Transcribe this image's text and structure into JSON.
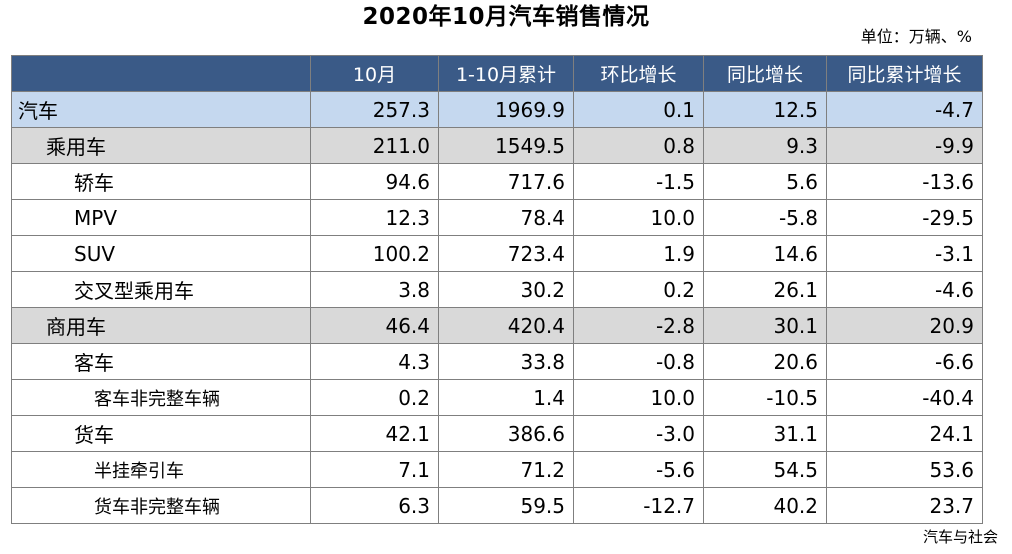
{
  "title": "2020年10月汽车销售情况",
  "unit": "单位：万辆、%",
  "source": "汽车与社会",
  "columns": [
    "",
    "10月",
    "1-10月累计",
    "环比增长",
    "同比增长",
    "同比累计增长"
  ],
  "rows": [
    {
      "name": "汽车",
      "level": 0,
      "style": "top",
      "v": [
        "257.3",
        "1969.9",
        "0.1",
        "12.5",
        "-4.7"
      ]
    },
    {
      "name": "乘用车",
      "level": 1,
      "style": "mid",
      "v": [
        "211.0",
        "1549.5",
        "0.8",
        "9.3",
        "-9.9"
      ]
    },
    {
      "name": "轿车",
      "level": 2,
      "style": "sub",
      "v": [
        "94.6",
        "717.6",
        "-1.5",
        "5.6",
        "-13.6"
      ]
    },
    {
      "name": "MPV",
      "level": 2,
      "style": "sub",
      "v": [
        "12.3",
        "78.4",
        "10.0",
        "-5.8",
        "-29.5"
      ]
    },
    {
      "name": "SUV",
      "level": 2,
      "style": "sub",
      "v": [
        "100.2",
        "723.4",
        "1.9",
        "14.6",
        "-3.1"
      ]
    },
    {
      "name": "交叉型乘用车",
      "level": 2,
      "style": "sub",
      "v": [
        "3.8",
        "30.2",
        "0.2",
        "26.1",
        "-4.6"
      ]
    },
    {
      "name": "商用车",
      "level": 1,
      "style": "mid",
      "v": [
        "46.4",
        "420.4",
        "-2.8",
        "30.1",
        "20.9"
      ]
    },
    {
      "name": "客车",
      "level": 2,
      "style": "sub",
      "v": [
        "4.3",
        "33.8",
        "-0.8",
        "20.6",
        "-6.6"
      ]
    },
    {
      "name": "客车非完整车辆",
      "level": 3,
      "style": "sub",
      "v": [
        "0.2",
        "1.4",
        "10.0",
        "-10.5",
        "-40.4"
      ]
    },
    {
      "name": "货车",
      "level": 2,
      "style": "sub",
      "v": [
        "42.1",
        "386.6",
        "-3.0",
        "31.1",
        "24.1"
      ]
    },
    {
      "name": "半挂牵引车",
      "level": 3,
      "style": "sub",
      "v": [
        "7.1",
        "71.2",
        "-5.6",
        "54.5",
        "53.6"
      ]
    },
    {
      "name": "货车非完整车辆",
      "level": 3,
      "style": "sub",
      "v": [
        "6.3",
        "59.5",
        "-12.7",
        "40.2",
        "23.7"
      ]
    }
  ]
}
